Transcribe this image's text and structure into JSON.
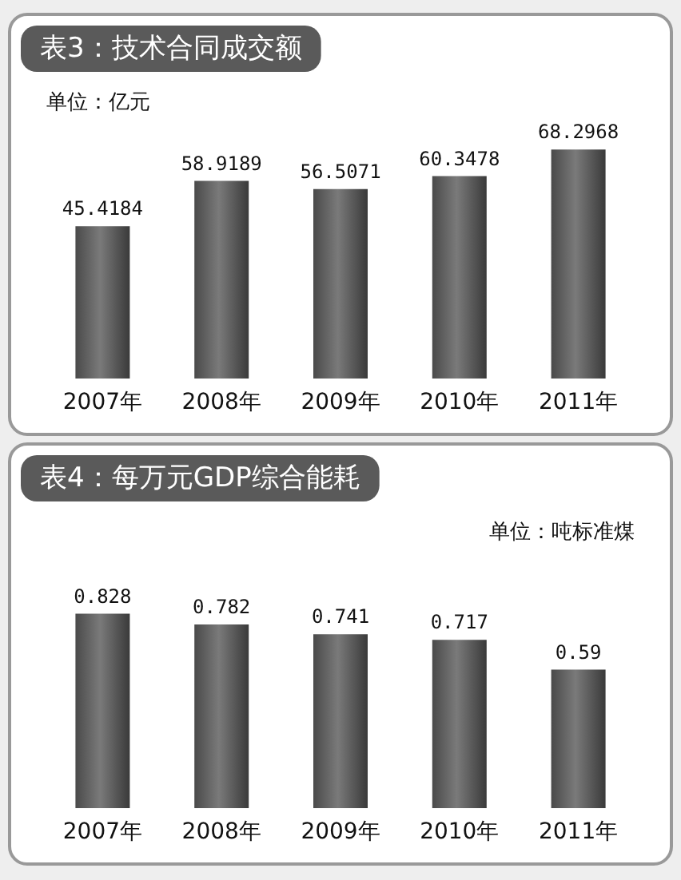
{
  "chart_data": [
    {
      "type": "bar",
      "title": "表3：技术合同成交额",
      "annotations": [
        "单位：亿元"
      ],
      "categories": [
        "2007年",
        "2008年",
        "2009年",
        "2010年",
        "2011年"
      ],
      "values": [
        45.4184,
        58.9189,
        56.5071,
        60.3478,
        68.2968
      ],
      "color": "#7a7a7a",
      "data_labels": true
    },
    {
      "type": "bar",
      "title": "表4：每万元GDP综合能耗",
      "annotations": [
        "单位：吨标准煤"
      ],
      "categories": [
        "2007年",
        "2008年",
        "2009年",
        "2010年",
        "2011年"
      ],
      "values": [
        0.828,
        0.782,
        0.741,
        0.717,
        0.59
      ],
      "color": "#7a7a7a",
      "data_labels": true
    }
  ]
}
